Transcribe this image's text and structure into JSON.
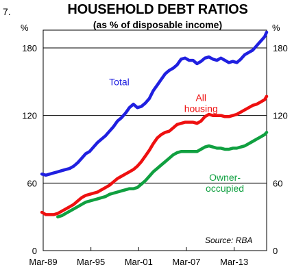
{
  "figure_number": "7.",
  "chart_data": {
    "type": "line",
    "title": "HOUSEHOLD DEBT RATIOS",
    "subtitle": "(as % of disposable income)",
    "ylabel_left": "%",
    "ylabel_right": "%",
    "xlim": [
      1989.167,
      2017.25
    ],
    "ylim": [
      0,
      180
    ],
    "yticks": [
      0,
      60,
      120,
      180
    ],
    "xticks": [
      {
        "x": 1989.167,
        "label": "Mar-89"
      },
      {
        "x": 1995.167,
        "label": "Mar-95"
      },
      {
        "x": 2001.167,
        "label": "Mar-01"
      },
      {
        "x": 2007.167,
        "label": "Mar-07"
      },
      {
        "x": 2013.167,
        "label": "Mar-13"
      }
    ],
    "grid": "horizontal",
    "source": "Source: RBA",
    "series": [
      {
        "name": "Total",
        "color": "#2020e0",
        "label_lines": [
          "Total"
        ],
        "points": [
          [
            1989.0,
            68
          ],
          [
            1989.5,
            67
          ],
          [
            1990.0,
            68
          ],
          [
            1990.5,
            69
          ],
          [
            1991.0,
            70
          ],
          [
            1991.5,
            71
          ],
          [
            1992.0,
            72
          ],
          [
            1992.5,
            73
          ],
          [
            1993.0,
            75
          ],
          [
            1993.5,
            78
          ],
          [
            1994.0,
            82
          ],
          [
            1994.5,
            86
          ],
          [
            1995.0,
            88
          ],
          [
            1995.5,
            92
          ],
          [
            1996.0,
            96
          ],
          [
            1996.5,
            99
          ],
          [
            1997.0,
            102
          ],
          [
            1997.5,
            106
          ],
          [
            1998.0,
            110
          ],
          [
            1998.5,
            115
          ],
          [
            1999.0,
            118
          ],
          [
            1999.5,
            122
          ],
          [
            2000.0,
            127
          ],
          [
            2000.5,
            130
          ],
          [
            2001.0,
            127
          ],
          [
            2001.5,
            128
          ],
          [
            2002.0,
            131
          ],
          [
            2002.5,
            135
          ],
          [
            2003.0,
            142
          ],
          [
            2003.5,
            147
          ],
          [
            2004.0,
            152
          ],
          [
            2004.5,
            157
          ],
          [
            2005.0,
            160
          ],
          [
            2005.5,
            162
          ],
          [
            2006.0,
            165
          ],
          [
            2006.5,
            170
          ],
          [
            2007.0,
            171
          ],
          [
            2007.5,
            169
          ],
          [
            2008.0,
            169
          ],
          [
            2008.5,
            166
          ],
          [
            2009.0,
            168
          ],
          [
            2009.5,
            171
          ],
          [
            2010.0,
            172
          ],
          [
            2010.5,
            170
          ],
          [
            2011.0,
            169
          ],
          [
            2011.5,
            171
          ],
          [
            2012.0,
            169
          ],
          [
            2012.5,
            167
          ],
          [
            2013.0,
            168
          ],
          [
            2013.5,
            167
          ],
          [
            2014.0,
            170
          ],
          [
            2014.5,
            174
          ],
          [
            2015.0,
            176
          ],
          [
            2015.5,
            178
          ],
          [
            2016.0,
            182
          ],
          [
            2016.5,
            186
          ],
          [
            2017.0,
            190
          ],
          [
            2017.25,
            194
          ]
        ]
      },
      {
        "name": "All housing",
        "color": "#ee1010",
        "label_lines": [
          "All",
          "housing"
        ],
        "points": [
          [
            1989.0,
            34
          ],
          [
            1989.5,
            32
          ],
          [
            1990.0,
            32
          ],
          [
            1990.5,
            32
          ],
          [
            1991.0,
            33
          ],
          [
            1991.5,
            35
          ],
          [
            1992.0,
            37
          ],
          [
            1992.5,
            39
          ],
          [
            1993.0,
            41
          ],
          [
            1993.5,
            44
          ],
          [
            1994.0,
            47
          ],
          [
            1994.5,
            49
          ],
          [
            1995.0,
            50
          ],
          [
            1995.5,
            51
          ],
          [
            1996.0,
            52
          ],
          [
            1996.5,
            54
          ],
          [
            1997.0,
            56
          ],
          [
            1997.5,
            58
          ],
          [
            1998.0,
            61
          ],
          [
            1998.5,
            64
          ],
          [
            1999.0,
            66
          ],
          [
            1999.5,
            68
          ],
          [
            2000.0,
            70
          ],
          [
            2000.5,
            72
          ],
          [
            2001.0,
            75
          ],
          [
            2001.5,
            79
          ],
          [
            2002.0,
            84
          ],
          [
            2002.5,
            89
          ],
          [
            2003.0,
            95
          ],
          [
            2003.5,
            100
          ],
          [
            2004.0,
            103
          ],
          [
            2004.5,
            105
          ],
          [
            2005.0,
            106
          ],
          [
            2005.5,
            109
          ],
          [
            2006.0,
            112
          ],
          [
            2006.5,
            113
          ],
          [
            2007.0,
            114
          ],
          [
            2007.5,
            114
          ],
          [
            2008.0,
            114
          ],
          [
            2008.5,
            113
          ],
          [
            2009.0,
            115
          ],
          [
            2009.5,
            119
          ],
          [
            2010.0,
            121
          ],
          [
            2010.5,
            120
          ],
          [
            2011.0,
            120
          ],
          [
            2011.5,
            120
          ],
          [
            2012.0,
            119
          ],
          [
            2012.5,
            119
          ],
          [
            2013.0,
            120
          ],
          [
            2013.5,
            121
          ],
          [
            2014.0,
            123
          ],
          [
            2014.5,
            125
          ],
          [
            2015.0,
            127
          ],
          [
            2015.5,
            129
          ],
          [
            2016.0,
            130
          ],
          [
            2016.5,
            132
          ],
          [
            2017.0,
            134
          ],
          [
            2017.25,
            137
          ]
        ]
      },
      {
        "name": "Owner-occupied",
        "color": "#10a040",
        "label_lines": [
          "Owner-",
          "occupied"
        ],
        "points": [
          [
            1991.0,
            30
          ],
          [
            1991.5,
            31
          ],
          [
            1992.0,
            33
          ],
          [
            1992.5,
            35
          ],
          [
            1993.0,
            37
          ],
          [
            1993.5,
            39
          ],
          [
            1994.0,
            41
          ],
          [
            1994.5,
            43
          ],
          [
            1995.0,
            44
          ],
          [
            1995.5,
            45
          ],
          [
            1996.0,
            46
          ],
          [
            1996.5,
            47
          ],
          [
            1997.0,
            48
          ],
          [
            1997.5,
            50
          ],
          [
            1998.0,
            51
          ],
          [
            1998.5,
            52
          ],
          [
            1999.0,
            53
          ],
          [
            1999.5,
            54
          ],
          [
            2000.0,
            55
          ],
          [
            2000.5,
            55
          ],
          [
            2001.0,
            56
          ],
          [
            2001.5,
            59
          ],
          [
            2002.0,
            62
          ],
          [
            2002.5,
            66
          ],
          [
            2003.0,
            70
          ],
          [
            2003.5,
            73
          ],
          [
            2004.0,
            76
          ],
          [
            2004.5,
            79
          ],
          [
            2005.0,
            82
          ],
          [
            2005.5,
            85
          ],
          [
            2006.0,
            87
          ],
          [
            2006.5,
            88
          ],
          [
            2007.0,
            88
          ],
          [
            2007.5,
            88
          ],
          [
            2008.0,
            88
          ],
          [
            2008.5,
            88
          ],
          [
            2009.0,
            90
          ],
          [
            2009.5,
            92
          ],
          [
            2010.0,
            93
          ],
          [
            2010.5,
            92
          ],
          [
            2011.0,
            91
          ],
          [
            2011.5,
            91
          ],
          [
            2012.0,
            90
          ],
          [
            2012.5,
            90
          ],
          [
            2013.0,
            91
          ],
          [
            2013.5,
            91
          ],
          [
            2014.0,
            92
          ],
          [
            2014.5,
            93
          ],
          [
            2015.0,
            95
          ],
          [
            2015.5,
            97
          ],
          [
            2016.0,
            99
          ],
          [
            2016.5,
            101
          ],
          [
            2017.0,
            103
          ],
          [
            2017.25,
            105
          ]
        ]
      }
    ]
  }
}
